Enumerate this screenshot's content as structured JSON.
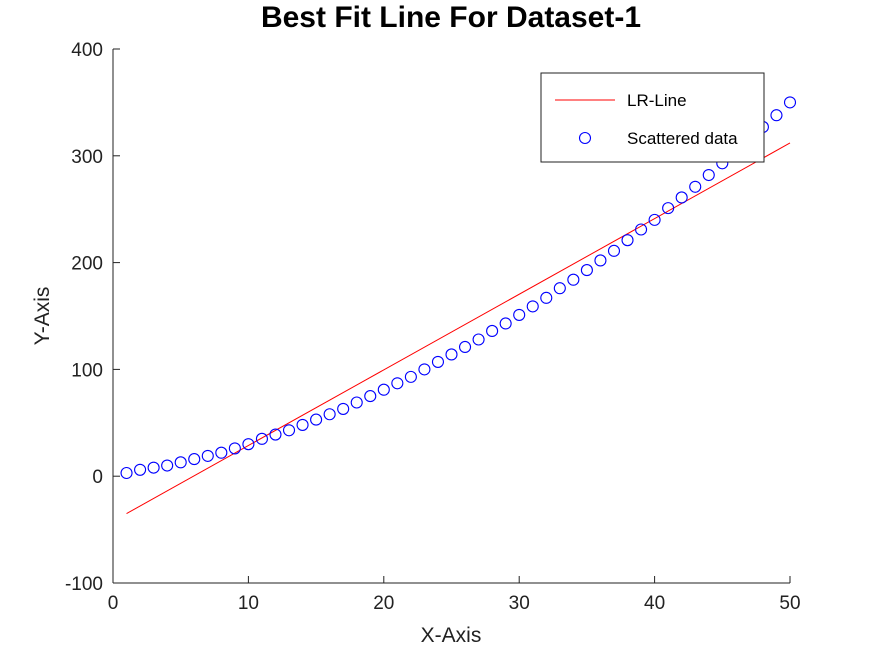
{
  "chart_data": {
    "type": "scatter",
    "title": "Best Fit Line For Dataset-1",
    "xlabel": "X-Axis",
    "ylabel": "Y-Axis",
    "xlim": [
      0,
      50
    ],
    "ylim": [
      -100,
      400
    ],
    "xticks": [
      "0",
      "10",
      "20",
      "30",
      "40",
      "50"
    ],
    "yticks": [
      "-100",
      "0",
      "100",
      "200",
      "300",
      "400"
    ],
    "grid": false,
    "legend_position": "top-right",
    "legend": [
      {
        "label": "LR-Line",
        "style": "line",
        "color": "#ff0000"
      },
      {
        "label": "Scattered data",
        "style": "circle",
        "color": "#0000ff"
      }
    ],
    "series": [
      {
        "name": "LR-Line",
        "kind": "line",
        "color": "#ff0000",
        "x": [
          1,
          50
        ],
        "y": [
          -35,
          312
        ]
      },
      {
        "name": "Scattered data",
        "kind": "scatter",
        "color": "#0000ff",
        "x": [
          1,
          2,
          3,
          4,
          5,
          6,
          7,
          8,
          9,
          10,
          11,
          12,
          13,
          14,
          15,
          16,
          17,
          18,
          19,
          20,
          21,
          22,
          23,
          24,
          25,
          26,
          27,
          28,
          29,
          30,
          31,
          32,
          33,
          34,
          35,
          36,
          37,
          38,
          39,
          40,
          41,
          42,
          43,
          44,
          45,
          46,
          47,
          48,
          49,
          50
        ],
        "y": [
          3,
          6,
          8,
          10,
          13,
          16,
          19,
          22,
          26,
          30,
          35,
          39,
          43,
          48,
          53,
          58,
          63,
          69,
          75,
          81,
          87,
          93,
          100,
          107,
          114,
          121,
          128,
          136,
          143,
          151,
          159,
          167,
          176,
          184,
          193,
          202,
          211,
          221,
          231,
          240,
          251,
          261,
          271,
          282,
          293,
          304,
          315,
          327,
          338,
          350
        ]
      }
    ]
  }
}
